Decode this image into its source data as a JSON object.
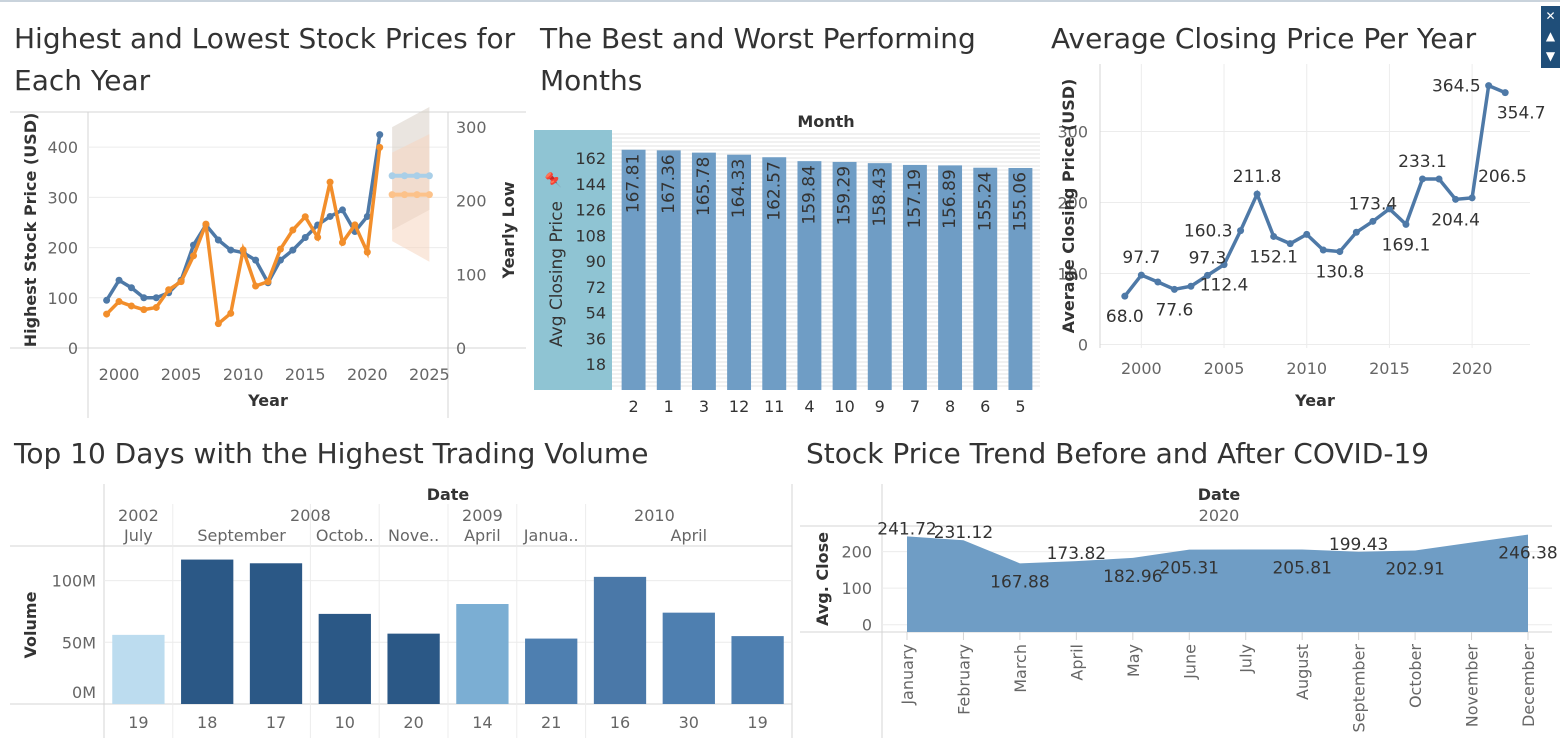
{
  "colors": {
    "blue": "#4e79a7",
    "orange": "#f28e2b",
    "bar": "#6f9dc5",
    "light_blue": "#a9cfe8",
    "pink_band": "#f5d5bf",
    "highlight": "#8fc4d3",
    "dark_blue": "#2b5886"
  },
  "window_controls": [
    "close-icon",
    "pin-icon",
    "dropdown-icon"
  ],
  "charts": {
    "c1": {
      "title": "Highest and Lowest Stock Prices for Each Year"
    },
    "c2": {
      "title": "The Best and Worst Performing Months"
    },
    "c3": {
      "title": "Average Closing Price Per Year"
    },
    "c4": {
      "title": "Top 10 Days with the Highest Trading Volume"
    },
    "c5": {
      "title": "Stock Price Trend Before and After COVID-19"
    }
  },
  "chart_data": [
    {
      "type": "line",
      "title": "Highest and Lowest Stock Prices for Each Year",
      "xlabel": "Year",
      "ylabel": "Highest Stock Price (USD)",
      "y2label": "Yearly Low",
      "x_ticks": [
        "2000",
        "2005",
        "2010",
        "2015",
        "2020",
        "2025"
      ],
      "y_ticks": [
        "0",
        "100",
        "200",
        "300",
        "400"
      ],
      "y2_ticks": [
        "0",
        "100",
        "200",
        "300"
      ],
      "xlim": [
        1997.5,
        2026.5
      ],
      "ylim": [
        0,
        470
      ],
      "y2lim": [
        0,
        320
      ],
      "series": [
        {
          "axis": "left",
          "points": [
            [
              1999,
              95
            ],
            [
              2000,
              135
            ],
            [
              2001,
              120
            ],
            [
              2002,
              100
            ],
            [
              2003,
              100
            ],
            [
              2004,
              110
            ],
            [
              2005,
              135
            ],
            [
              2006,
              205
            ],
            [
              2007,
              245
            ],
            [
              2008,
              215
            ],
            [
              2009,
              195
            ],
            [
              2010,
              190
            ],
            [
              2011,
              175
            ],
            [
              2012,
              130
            ],
            [
              2013,
              175
            ],
            [
              2014,
              195
            ],
            [
              2015,
              220
            ],
            [
              2016,
              245
            ],
            [
              2017,
              262
            ],
            [
              2018,
              275
            ],
            [
              2019,
              232
            ],
            [
              2020,
              262
            ],
            [
              2021,
              425
            ]
          ]
        },
        {
          "axis": "right",
          "points": [
            [
              1999,
              46
            ],
            [
              2000,
              63
            ],
            [
              2001,
              57
            ],
            [
              2002,
              52
            ],
            [
              2003,
              55
            ],
            [
              2004,
              79
            ],
            [
              2005,
              90
            ],
            [
              2006,
              125
            ],
            [
              2007,
              168
            ],
            [
              2008,
              33
            ],
            [
              2009,
              47
            ],
            [
              2010,
              133
            ],
            [
              2011,
              84
            ],
            [
              2012,
              90
            ],
            [
              2013,
              134
            ],
            [
              2014,
              160
            ],
            [
              2015,
              178
            ],
            [
              2016,
              150
            ],
            [
              2017,
              225
            ],
            [
              2018,
              143
            ],
            [
              2019,
              167
            ],
            [
              2020,
              130
            ],
            [
              2021,
              272
            ]
          ]
        }
      ],
      "forecast": [
        {
          "axis": "left",
          "points": [
            [
              2022,
              343
            ],
            [
              2023,
              343
            ],
            [
              2024,
              343
            ],
            [
              2025,
              343
            ]
          ],
          "band_low": [
            [
              2022,
              235
            ],
            [
              2025,
              275
            ]
          ],
          "band_high": [
            [
              2022,
              440
            ],
            [
              2025,
              480
            ]
          ]
        },
        {
          "axis": "right",
          "points": [
            [
              2022,
              208
            ],
            [
              2023,
              208
            ],
            [
              2024,
              208
            ],
            [
              2025,
              208
            ]
          ],
          "band_low": [
            [
              2022,
              145
            ],
            [
              2025,
              117
            ]
          ],
          "band_high": [
            [
              2022,
              265
            ],
            [
              2025,
              290
            ]
          ]
        }
      ]
    },
    {
      "type": "bar",
      "title": "The Best and Worst Performing Months",
      "xlabel": "Month",
      "ylabel": "Avg Closing Price",
      "categories": [
        "2",
        "1",
        "3",
        "12",
        "11",
        "4",
        "10",
        "9",
        "7",
        "8",
        "6",
        "5"
      ],
      "values": [
        167.81,
        167.36,
        165.78,
        164.33,
        162.57,
        159.84,
        159.29,
        158.43,
        157.19,
        156.89,
        155.24,
        155.06
      ],
      "value_labels": [
        "167.81",
        "167.36",
        "165.78",
        "164.33",
        "162.57",
        "159.84",
        "159.29",
        "158.43",
        "157.19",
        "156.89",
        "155.24",
        "155.06"
      ],
      "y_ticks": [
        "18",
        "36",
        "54",
        "72",
        "90",
        "108",
        "126",
        "144",
        "162"
      ],
      "ylim": [
        0,
        176
      ]
    },
    {
      "type": "line",
      "title": "Average Closing Price Per Year",
      "xlabel": "Year",
      "ylabel": "Average Closing Price (USD)",
      "x_ticks": [
        "2000",
        "2005",
        "2010",
        "2015",
        "2020"
      ],
      "y_ticks": [
        "0",
        "100",
        "200",
        "300"
      ],
      "xlim": [
        1997.5,
        2023.5
      ],
      "ylim": [
        -5,
        395
      ],
      "points": [
        [
          1999,
          68.0
        ],
        [
          2000,
          97.7
        ],
        [
          2001,
          88
        ],
        [
          2002,
          77.6
        ],
        [
          2003,
          82
        ],
        [
          2004,
          97.3
        ],
        [
          2005,
          112.4
        ],
        [
          2006,
          160.3
        ],
        [
          2007,
          211.8
        ],
        [
          2008,
          152.1
        ],
        [
          2009,
          142
        ],
        [
          2010,
          155
        ],
        [
          2011,
          133
        ],
        [
          2012,
          130.8
        ],
        [
          2013,
          158
        ],
        [
          2014,
          173.4
        ],
        [
          2015,
          191
        ],
        [
          2016,
          169.1
        ],
        [
          2017,
          233.1
        ],
        [
          2018,
          233
        ],
        [
          2019,
          204.4
        ],
        [
          2020,
          206.5
        ],
        [
          2021,
          364.5
        ],
        [
          2022,
          354.7
        ]
      ],
      "labels": [
        {
          "x": 1999,
          "text": "68.0",
          "pos": "below"
        },
        {
          "x": 2000,
          "text": "97.7",
          "pos": "above"
        },
        {
          "x": 2002,
          "text": "77.6",
          "pos": "below"
        },
        {
          "x": 2004,
          "text": "97.3",
          "pos": "above"
        },
        {
          "x": 2005,
          "text": "112.4",
          "pos": "below"
        },
        {
          "x": 2006,
          "text": "160.3",
          "pos": "left"
        },
        {
          "x": 2007,
          "text": "211.8",
          "pos": "above"
        },
        {
          "x": 2008,
          "text": "152.1",
          "pos": "below"
        },
        {
          "x": 2012,
          "text": "130.8",
          "pos": "below"
        },
        {
          "x": 2014,
          "text": "173.4",
          "pos": "above"
        },
        {
          "x": 2016,
          "text": "169.1",
          "pos": "below"
        },
        {
          "x": 2017,
          "text": "233.1",
          "pos": "above"
        },
        {
          "x": 2019,
          "text": "204.4",
          "pos": "below"
        },
        {
          "x": 2020,
          "text": "206.5",
          "pos": "right"
        },
        {
          "x": 2021,
          "text": "364.5",
          "pos": "left"
        },
        {
          "x": 2022,
          "text": "354.7",
          "pos": "below"
        }
      ]
    },
    {
      "type": "bar",
      "title": "Top 10 Days with the Highest Trading Volume",
      "header_label": "Date",
      "ylabel": "Volume",
      "years": [
        {
          "label": "2002",
          "span": [
            0,
            0
          ]
        },
        {
          "label": "2008",
          "span": [
            1,
            4
          ]
        },
        {
          "label": "2009",
          "span": [
            5,
            5
          ]
        },
        {
          "label": "2010",
          "span": [
            6,
            9
          ]
        }
      ],
      "months": [
        {
          "label": "July",
          "span": [
            0,
            0
          ]
        },
        {
          "label": "September",
          "span": [
            1,
            2
          ]
        },
        {
          "label": "Octob..",
          "span": [
            3,
            3
          ]
        },
        {
          "label": "Nove..",
          "span": [
            4,
            4
          ]
        },
        {
          "label": "April",
          "span": [
            5,
            5
          ]
        },
        {
          "label": "Janua..",
          "span": [
            6,
            6
          ]
        },
        {
          "label": "April",
          "span": [
            7,
            9
          ]
        }
      ],
      "categories": [
        "19",
        "18",
        "17",
        "10",
        "20",
        "14",
        "21",
        "16",
        "30",
        "19"
      ],
      "values": [
        56,
        117,
        114,
        73,
        57,
        81,
        53,
        103,
        74,
        55
      ],
      "unit": "M",
      "y_ticks": [
        "0M",
        "50M",
        "100M"
      ],
      "ylim": [
        0,
        128
      ],
      "bar_colors": [
        "#bcdcef",
        "#2b5886",
        "#2b5886",
        "#2b5886",
        "#2b5886",
        "#7baed3",
        "#4e7fb0",
        "#4a78a8",
        "#4e7fb0",
        "#4e7fb0"
      ]
    },
    {
      "type": "area",
      "title": "Stock Price Trend Before and After COVID-19",
      "header_label": "Date",
      "header_year": "2020",
      "ylabel": "Avg. Close",
      "categories": [
        "January",
        "February",
        "March",
        "April",
        "May",
        "June",
        "July",
        "August",
        "September",
        "October",
        "November",
        "December"
      ],
      "values": [
        241.72,
        231.12,
        167.88,
        173.82,
        182.96,
        205.31,
        205.81,
        205.81,
        199.43,
        202.91,
        225.0,
        246.38
      ],
      "value_labels": [
        {
          "i": 0,
          "text": "241.72",
          "pos": "above"
        },
        {
          "i": 1,
          "text": "231.12",
          "pos": "above"
        },
        {
          "i": 2,
          "text": "167.88",
          "pos": "below"
        },
        {
          "i": 3,
          "text": "173.82",
          "pos": "above"
        },
        {
          "i": 4,
          "text": "182.96",
          "pos": "below"
        },
        {
          "i": 5,
          "text": "205.31",
          "pos": "below"
        },
        {
          "i": 7,
          "text": "205.81",
          "pos": "below"
        },
        {
          "i": 8,
          "text": "199.43",
          "pos": "above"
        },
        {
          "i": 9,
          "text": "202.91",
          "pos": "below"
        },
        {
          "i": 11,
          "text": "246.38",
          "pos": "below"
        }
      ],
      "y_ticks": [
        "0",
        "100",
        "200"
      ],
      "ylim": [
        -20,
        270
      ]
    }
  ]
}
